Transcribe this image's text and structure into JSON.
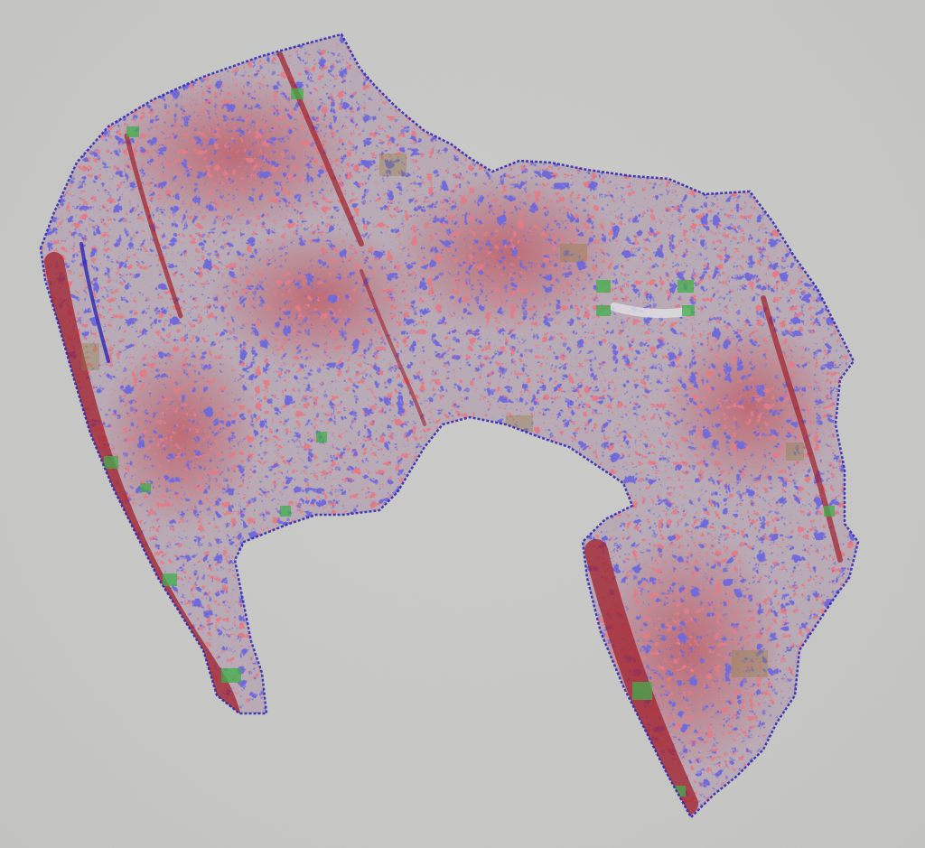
{
  "image": {
    "background_color": "#c8c9c7",
    "tissue_base_color": "#b9a9b4",
    "stain_colors": {
      "blue": "#2a25b4",
      "red": "#c4343c",
      "dark_red": "#a01e2a",
      "green": "#3fae4a",
      "olive": "#8d7b3a"
    },
    "description_icons": [
      "tissue-section"
    ]
  }
}
